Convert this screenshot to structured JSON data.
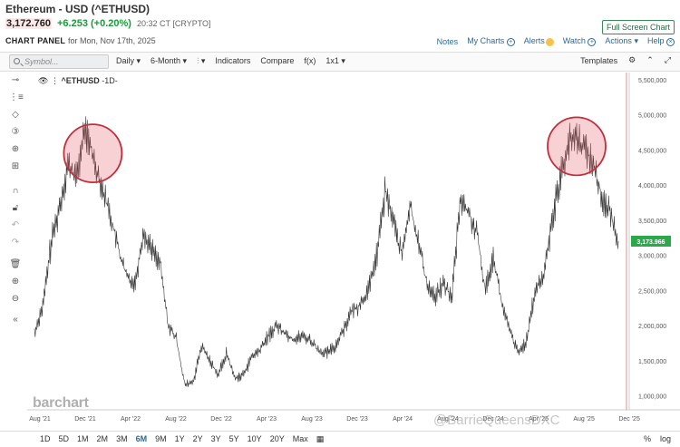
{
  "header": {
    "title": "Ethereum - USD (^ETHUSD)",
    "price": "3,172.760",
    "change": "+6.253 (+0.20%)",
    "time": "20:32 CT [CRYPTO]",
    "panel_label": "CHART PANEL",
    "panel_date": "for Mon, Nov 17th, 2025",
    "fullscreen": "Full Screen Chart",
    "links": [
      "Notes",
      "My Charts",
      "Alerts",
      "Watch",
      "Actions",
      "Help"
    ]
  },
  "toolbar": {
    "search_placeholder": "Symbol...",
    "items": [
      "Daily ▾",
      "6-Month ▾",
      "⫶ ▾",
      "Indicators",
      "Compare",
      "f(x)",
      "1x1 ▾"
    ],
    "templates": "Templates"
  },
  "legend": {
    "symbol": "^ETHUSD",
    "interval": "-1D-"
  },
  "icons": [
    "crosshair-icon",
    "fib-icon",
    "shapes-icon",
    "counter-icon",
    "indicator-icon",
    "magnet-icon",
    "lock-icon",
    "undo-icon",
    "redo-icon",
    "trash-icon",
    "zoom-in-icon",
    "zoom-out-icon",
    "collapse-icon"
  ],
  "chart_data": {
    "type": "line",
    "title": "",
    "x_ticks": [
      "Aug '21",
      "Dec '21",
      "Apr '22",
      "Aug '22",
      "Dec '22",
      "Apr '23",
      "Aug '23",
      "Dec '23",
      "Apr '24",
      "Aug '24",
      "Dec '24",
      "Apr '25",
      "Aug '25",
      "Dec '25"
    ],
    "y_ticks": [
      1000000,
      1500000,
      2000000,
      2500000,
      3000000,
      3500000,
      4000000,
      4500000,
      5000000,
      5500000
    ],
    "y_tick_labels": [
      "1,000,000",
      "1,500,000",
      "2,000,000",
      "2,500,000",
      "3,000,000",
      "3,500,000",
      "4,000,000",
      "4,500,000",
      "5,000,000",
      "5,500,000"
    ],
    "ylim": [
      800000,
      5600000
    ],
    "last_value_label": "3,173.966",
    "series": [
      {
        "values": [
          [
            0,
            1900000
          ],
          [
            1,
            2300000
          ],
          [
            2,
            3200000
          ],
          [
            3,
            3700000
          ],
          [
            4,
            4300000
          ],
          [
            5,
            4100000
          ],
          [
            6,
            4800000
          ],
          [
            7,
            4400000
          ],
          [
            8,
            4000000
          ],
          [
            9,
            3600000
          ],
          [
            10,
            3100000
          ],
          [
            11,
            2700000
          ],
          [
            12,
            2600000
          ],
          [
            13,
            3300000
          ],
          [
            14,
            3100000
          ],
          [
            15,
            2900000
          ],
          [
            16,
            2000000
          ],
          [
            17,
            1800000
          ],
          [
            18,
            1150000
          ],
          [
            19,
            1200000
          ],
          [
            20,
            1700000
          ],
          [
            21,
            1500000
          ],
          [
            22,
            1300000
          ],
          [
            23,
            1600000
          ],
          [
            24,
            1250000
          ],
          [
            25,
            1300000
          ],
          [
            26,
            1550000
          ],
          [
            27,
            1650000
          ],
          [
            28,
            1850000
          ],
          [
            29,
            2000000
          ],
          [
            30,
            1900000
          ],
          [
            31,
            1800000
          ],
          [
            32,
            1850000
          ],
          [
            33,
            1800000
          ],
          [
            34,
            1650000
          ],
          [
            35,
            1600000
          ],
          [
            36,
            1700000
          ],
          [
            37,
            1950000
          ],
          [
            38,
            2200000
          ],
          [
            39,
            2300000
          ],
          [
            40,
            2500000
          ],
          [
            41,
            3000000
          ],
          [
            42,
            3900000
          ],
          [
            43,
            3500000
          ],
          [
            44,
            3000000
          ],
          [
            45,
            3700000
          ],
          [
            46,
            3200000
          ],
          [
            47,
            2600000
          ],
          [
            48,
            2400000
          ],
          [
            49,
            2600000
          ],
          [
            50,
            2400000
          ],
          [
            51,
            3800000
          ],
          [
            52,
            3600000
          ],
          [
            53,
            3300000
          ],
          [
            54,
            2500000
          ],
          [
            55,
            3000000
          ],
          [
            56,
            2300000
          ],
          [
            57,
            1900000
          ],
          [
            58,
            1600000
          ],
          [
            59,
            1800000
          ],
          [
            60,
            2500000
          ],
          [
            61,
            2700000
          ],
          [
            62,
            3500000
          ],
          [
            63,
            4100000
          ],
          [
            64,
            4600000
          ],
          [
            65,
            4700000
          ],
          [
            66,
            4500000
          ],
          [
            67,
            4300000
          ],
          [
            68,
            3800000
          ],
          [
            69,
            3600000
          ],
          [
            70,
            3200000
          ]
        ]
      }
    ],
    "highlights": [
      {
        "center_index": 7,
        "value": 4450000
      },
      {
        "center_index": 65,
        "value": 4550000
      }
    ]
  },
  "bottom": {
    "periods": [
      "1D",
      "5D",
      "1M",
      "2M",
      "3M",
      "6M",
      "9M",
      "1Y",
      "2Y",
      "3Y",
      "5Y",
      "10Y",
      "20Y",
      "Max"
    ],
    "active": "6M",
    "right": [
      "%",
      "log"
    ],
    "watermark": "barchart",
    "overlay": "@BarrieQueensDXC"
  }
}
